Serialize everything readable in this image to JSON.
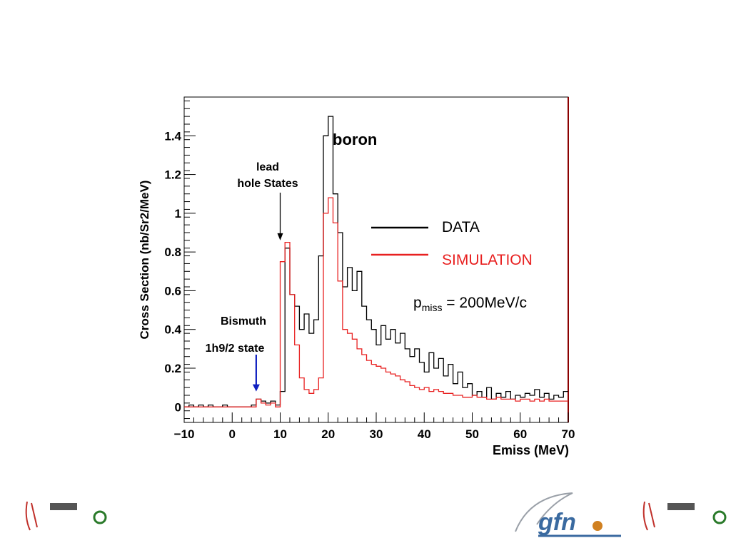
{
  "chart_data": {
    "type": "line",
    "xlabel": "Emiss (MeV)",
    "ylabel": "Cross Section (nb/Sr2/MeV)",
    "xlim": [
      -10,
      70
    ],
    "ylim": [
      -0.08,
      1.6
    ],
    "xticks": [
      -10,
      0,
      10,
      20,
      30,
      40,
      50,
      60,
      70
    ],
    "xtick_labels": [
      "−10",
      "0",
      "10",
      "20",
      "30",
      "40",
      "50",
      "60",
      "70"
    ],
    "yticks": [
      0,
      0.2,
      0.4,
      0.6,
      0.8,
      1.0,
      1.2,
      1.4
    ],
    "ytick_labels": [
      "0",
      "0.2",
      "0.4",
      "0.6",
      "0.8",
      "1",
      "1.2",
      "1.4"
    ],
    "bin_width": 1,
    "bin_start": -10,
    "series": [
      {
        "name": "DATA",
        "color": "#000000",
        "values": [
          0.0,
          0.01,
          0.0,
          0.01,
          0.0,
          0.01,
          0.0,
          0.0,
          0.01,
          0.0,
          0.0,
          0.0,
          0.0,
          0.0,
          0.01,
          0.04,
          0.03,
          0.02,
          0.03,
          0.01,
          0.08,
          0.82,
          0.58,
          0.52,
          0.4,
          0.48,
          0.38,
          0.45,
          0.78,
          1.4,
          1.5,
          1.1,
          0.9,
          0.62,
          0.72,
          0.6,
          0.7,
          0.52,
          0.45,
          0.4,
          0.32,
          0.42,
          0.35,
          0.4,
          0.33,
          0.38,
          0.3,
          0.26,
          0.3,
          0.23,
          0.18,
          0.28,
          0.2,
          0.25,
          0.16,
          0.22,
          0.12,
          0.18,
          0.1,
          0.12,
          0.06,
          0.08,
          0.05,
          0.1,
          0.04,
          0.07,
          0.05,
          0.08,
          0.04,
          0.06,
          0.05,
          0.07,
          0.06,
          0.09,
          0.05,
          0.07,
          0.04,
          0.06,
          0.05,
          0.08
        ]
      },
      {
        "name": "SIMULATION",
        "color": "#e82020",
        "values": [
          0.0,
          0.0,
          0.0,
          0.0,
          0.0,
          0.0,
          0.0,
          0.0,
          0.0,
          0.0,
          0.0,
          0.0,
          0.0,
          0.0,
          0.0,
          0.04,
          0.02,
          0.01,
          0.02,
          0.0,
          0.75,
          0.85,
          0.58,
          0.32,
          0.15,
          0.09,
          0.07,
          0.09,
          0.15,
          1.0,
          1.08,
          0.95,
          0.65,
          0.4,
          0.38,
          0.35,
          0.3,
          0.27,
          0.24,
          0.22,
          0.21,
          0.2,
          0.18,
          0.17,
          0.16,
          0.14,
          0.13,
          0.11,
          0.1,
          0.09,
          0.1,
          0.08,
          0.09,
          0.08,
          0.07,
          0.07,
          0.06,
          0.06,
          0.05,
          0.05,
          0.06,
          0.05,
          0.05,
          0.04,
          0.04,
          0.05,
          0.04,
          0.04,
          0.04,
          0.03,
          0.04,
          0.04,
          0.03,
          0.04,
          0.03,
          0.04,
          0.03,
          0.03,
          0.03,
          0.03
        ]
      }
    ],
    "legend_placement": "right",
    "annotations": {
      "boron": "boron",
      "lead_line1": "lead",
      "lead_line2": "hole States",
      "lead_arrow_x": 10,
      "lead_arrow_y": 0.86,
      "bismuth_line1": "Bismuth",
      "bismuth_line2": "1h9/2 state",
      "bismuth_arrow_x": 5,
      "bismuth_arrow_y": 0.08,
      "pmiss_p": "p",
      "pmiss_sub": "miss",
      "pmiss_rest": " = 200MeV/c"
    }
  },
  "colors": {
    "bismuth_arrow": "#1020c0",
    "simulation": "#e82020",
    "data": "#000000"
  }
}
